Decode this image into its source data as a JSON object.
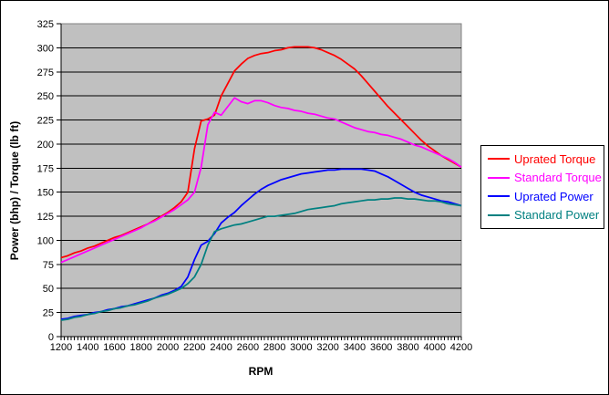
{
  "chart_data": {
    "type": "line",
    "title": "",
    "xlabel": "RPM",
    "ylabel": "Power (bhp) / Torque (lb ft)",
    "xlim": [
      1200,
      4200
    ],
    "ylim": [
      0,
      325
    ],
    "x_ticks": [
      1200,
      1400,
      1600,
      1800,
      2000,
      2200,
      2400,
      2600,
      2800,
      3000,
      3200,
      3400,
      3600,
      3800,
      4000,
      4200
    ],
    "y_ticks": [
      0,
      25,
      50,
      75,
      100,
      125,
      150,
      175,
      200,
      225,
      250,
      275,
      300,
      325
    ],
    "x_minor_tick_step": 25,
    "grid": true,
    "legend_position": "right",
    "plot_bg_color": "#c0c0c0",
    "grid_color": "#000000",
    "plot_border_color": "#808080",
    "x": [
      1200,
      1250,
      1300,
      1350,
      1400,
      1450,
      1500,
      1550,
      1600,
      1650,
      1700,
      1750,
      1800,
      1850,
      1900,
      1950,
      2000,
      2050,
      2100,
      2150,
      2200,
      2250,
      2300,
      2350,
      2400,
      2450,
      2500,
      2550,
      2600,
      2650,
      2700,
      2750,
      2800,
      2850,
      2900,
      2950,
      3000,
      3050,
      3100,
      3150,
      3200,
      3250,
      3300,
      3350,
      3400,
      3450,
      3500,
      3550,
      3600,
      3650,
      3700,
      3750,
      3800,
      3850,
      3900,
      3950,
      4000,
      4050,
      4100,
      4150,
      4200
    ],
    "series": [
      {
        "name": "Uprated Torque",
        "color": "#ff0000",
        "values": [
          82,
          84,
          87,
          89,
          92,
          94,
          97,
          100,
          103,
          105,
          108,
          111,
          114,
          117,
          121,
          125,
          129,
          134,
          140,
          150,
          195,
          224,
          226,
          230,
          250,
          263,
          276,
          283,
          289,
          292,
          294,
          295,
          297,
          298,
          300,
          301,
          301,
          301,
          300,
          298,
          295,
          292,
          288,
          283,
          278,
          271,
          263,
          255,
          247,
          239,
          232,
          225,
          218,
          211,
          204,
          198,
          193,
          188,
          184,
          180,
          176
        ]
      },
      {
        "name": "Standard Torque",
        "color": "#ff00ff",
        "values": [
          77,
          80,
          83,
          86,
          89,
          92,
          95,
          98,
          101,
          104,
          107,
          110,
          113,
          117,
          120,
          124,
          128,
          132,
          137,
          142,
          150,
          176,
          220,
          233,
          230,
          239,
          248,
          244,
          242,
          245,
          245,
          243,
          240,
          238,
          237,
          235,
          234,
          232,
          231,
          229,
          227,
          226,
          223,
          220,
          217,
          215,
          213,
          212,
          210,
          209,
          207,
          205,
          202,
          199,
          197,
          194,
          191,
          188,
          185,
          181,
          176
        ]
      },
      {
        "name": "Uprated Power",
        "color": "#0000ff",
        "values": [
          18,
          19,
          21,
          22,
          23,
          25,
          26,
          28,
          29,
          31,
          32,
          34,
          36,
          38,
          40,
          43,
          45,
          48,
          52,
          62,
          80,
          95,
          99,
          107,
          118,
          124,
          129,
          136,
          142,
          148,
          153,
          157,
          160,
          163,
          165,
          167,
          169,
          170,
          171,
          172,
          173,
          173,
          174,
          174,
          174,
          174,
          173,
          172,
          169,
          166,
          162,
          158,
          154,
          150,
          147,
          145,
          143,
          141,
          140,
          138,
          136
        ]
      },
      {
        "name": "Standard Power",
        "color": "#008080",
        "values": [
          17,
          18,
          20,
          21,
          23,
          24,
          26,
          27,
          29,
          30,
          32,
          33,
          35,
          37,
          40,
          42,
          44,
          47,
          50,
          55,
          62,
          75,
          95,
          109,
          112,
          114,
          116,
          117,
          119,
          121,
          123,
          125,
          125,
          126,
          127,
          128,
          130,
          132,
          133,
          134,
          135,
          136,
          138,
          139,
          140,
          141,
          142,
          142,
          143,
          143,
          144,
          144,
          143,
          143,
          142,
          141,
          141,
          140,
          138,
          137,
          136
        ]
      }
    ]
  }
}
